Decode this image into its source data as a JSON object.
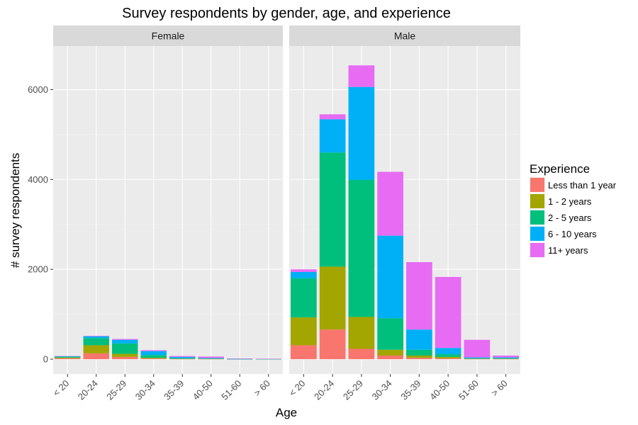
{
  "chart_data": {
    "type": "bar",
    "stacked": true,
    "title": "Survey respondents by gender, age, and experience",
    "xlabel": "Age",
    "ylabel": "# survey respondents",
    "ylim": [
      -330,
      6970
    ],
    "yticks": [
      0,
      2000,
      4000,
      6000
    ],
    "ytick_labels": [
      "0",
      "2000",
      "4000",
      "6000"
    ],
    "categories": [
      "< 20",
      "20-24",
      "25-29",
      "30-34",
      "35-39",
      "40-50",
      "51-60",
      "> 60"
    ],
    "facets": [
      "Female",
      "Male"
    ],
    "grid": true,
    "legend": {
      "title": "Experience",
      "position": "right",
      "items": [
        {
          "name": "Less than 1 year",
          "color": "#F8766D"
        },
        {
          "name": "1 - 2 years",
          "color": "#A3A500"
        },
        {
          "name": "2 - 5 years",
          "color": "#00BF7D"
        },
        {
          "name": "6 - 10 years",
          "color": "#00B0F6"
        },
        {
          "name": "11+ years",
          "color": "#E76BF3"
        }
      ]
    },
    "series": [
      {
        "name": "Less than 1 year",
        "color": "#F8766D",
        "values": {
          "Female": [
            20,
            130,
            50,
            15,
            5,
            5,
            2,
            2
          ],
          "Male": [
            310,
            660,
            230,
            80,
            30,
            20,
            5,
            5
          ]
        }
      },
      {
        "name": "1 - 2 years",
        "color": "#A3A500",
        "values": {
          "Female": [
            15,
            180,
            70,
            15,
            5,
            3,
            1,
            1
          ],
          "Male": [
            620,
            1400,
            710,
            130,
            50,
            30,
            5,
            5
          ]
        }
      },
      {
        "name": "2 - 5 years",
        "color": "#00BF7D",
        "values": {
          "Female": [
            20,
            160,
            230,
            60,
            10,
            5,
            1,
            1
          ],
          "Male": [
            870,
            2540,
            3050,
            700,
            130,
            60,
            10,
            10
          ]
        }
      },
      {
        "name": "6 - 10 years",
        "color": "#00B0F6",
        "values": {
          "Female": [
            10,
            40,
            80,
            90,
            30,
            15,
            2,
            3
          ],
          "Male": [
            140,
            740,
            2070,
            1840,
            450,
            140,
            20,
            20
          ]
        }
      },
      {
        "name": "11+ years",
        "color": "#E76BF3",
        "values": {
          "Female": [
            5,
            10,
            20,
            20,
            20,
            30,
            10,
            3
          ],
          "Male": [
            60,
            110,
            480,
            1420,
            1500,
            1580,
            390,
            40
          ]
        }
      }
    ]
  }
}
